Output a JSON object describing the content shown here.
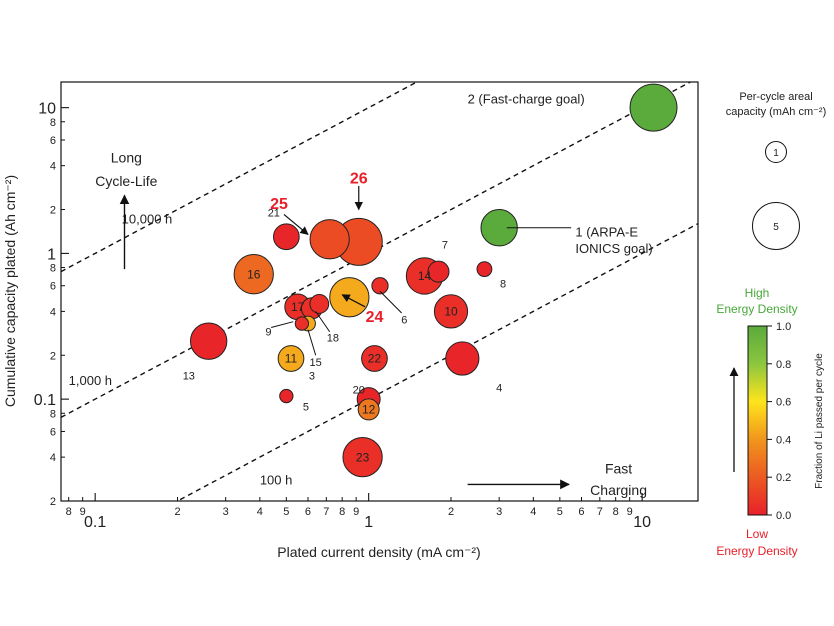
{
  "chart_data": {
    "type": "scatter",
    "xscale": "log",
    "yscale": "log",
    "xlim": [
      0.075,
      16
    ],
    "ylim": [
      0.02,
      15
    ],
    "xlabel": "Plated current density (mA cm⁻²)",
    "ylabel": "Cumulative capacity plated (Ah cm⁻²)",
    "x_major_ticks": [
      {
        "v": 0.1,
        "label": "0.1"
      },
      {
        "v": 1,
        "label": "1"
      },
      {
        "v": 10,
        "label": "10"
      }
    ],
    "x_minor_ticks": [
      {
        "v": 0.08,
        "label": "8"
      },
      {
        "v": 0.09,
        "label": "9"
      },
      {
        "v": 0.2,
        "label": "2"
      },
      {
        "v": 0.3,
        "label": "3"
      },
      {
        "v": 0.4,
        "label": "4"
      },
      {
        "v": 0.5,
        "label": "5"
      },
      {
        "v": 0.6,
        "label": "6"
      },
      {
        "v": 0.7,
        "label": "7"
      },
      {
        "v": 0.8,
        "label": "8"
      },
      {
        "v": 0.9,
        "label": "9"
      },
      {
        "v": 2,
        "label": "2"
      },
      {
        "v": 3,
        "label": "3"
      },
      {
        "v": 4,
        "label": "4"
      },
      {
        "v": 5,
        "label": "5"
      },
      {
        "v": 6,
        "label": "6"
      },
      {
        "v": 7,
        "label": "7"
      },
      {
        "v": 8,
        "label": "8"
      },
      {
        "v": 9,
        "label": "9"
      }
    ],
    "y_major_ticks": [
      {
        "v": 0.1,
        "label": "0.1"
      },
      {
        "v": 1,
        "label": "1"
      },
      {
        "v": 10,
        "label": "10"
      }
    ],
    "y_minor_ticks": [
      {
        "v": 0.02,
        "label": "2"
      },
      {
        "v": 0.04,
        "label": "4"
      },
      {
        "v": 0.06,
        "label": "6"
      },
      {
        "v": 0.08,
        "label": "8"
      },
      {
        "v": 0.2,
        "label": "2"
      },
      {
        "v": 0.4,
        "label": "4"
      },
      {
        "v": 0.6,
        "label": "6"
      },
      {
        "v": 0.8,
        "label": "8"
      },
      {
        "v": 2,
        "label": "2"
      },
      {
        "v": 4,
        "label": "4"
      },
      {
        "v": 6,
        "label": "6"
      },
      {
        "v": 8,
        "label": "8"
      }
    ],
    "constant_time_lines": [
      {
        "hours": 10000,
        "label": "10,000 h",
        "label_x": 0.125,
        "label_y": 1.6
      },
      {
        "hours": 1000,
        "label": "1,000 h",
        "label_x": 0.08,
        "label_y": 0.125
      },
      {
        "hours": 100,
        "label": "100 h",
        "label_x": 0.4,
        "label_y": 0.026
      }
    ],
    "points": [
      {
        "id": "1",
        "x": 3.0,
        "y": 1.5,
        "cap": 3.0,
        "frac": 1.0,
        "label": "1 (ARPA-E\nIONICS goal)",
        "label_x": 5.7,
        "label_y": 1.4,
        "label_color": "#222222",
        "label_size": 13,
        "label_bold": false,
        "label_anchor": "start"
      },
      {
        "id": "2",
        "x": 11.0,
        "y": 10.0,
        "cap": 5.0,
        "frac": 1.0,
        "label": "2 (Fast-charge goal)",
        "label_x": 2.3,
        "label_y": 11.5,
        "label_color": "#222222",
        "label_size": 13,
        "label_bold": false,
        "label_anchor": "start"
      },
      {
        "id": "3",
        "x": 0.6,
        "y": 0.33,
        "cap": 0.5,
        "frac": 0.45,
        "label": "3",
        "label_x": 0.62,
        "label_y": 0.145,
        "label_color": "#222222",
        "label_size": 11,
        "label_bold": false,
        "label_anchor": "middle"
      },
      {
        "id": "4",
        "x": 2.2,
        "y": 0.19,
        "cap": 2.5,
        "frac": 0.02,
        "label": "4",
        "label_x": 3.0,
        "label_y": 0.12,
        "label_color": "#222222",
        "label_size": 11,
        "label_bold": false,
        "label_anchor": "middle"
      },
      {
        "id": "5",
        "x": 0.5,
        "y": 0.105,
        "cap": 0.4,
        "frac": 0.02,
        "label": "5",
        "label_x": 0.59,
        "label_y": 0.089,
        "label_color": "#222222",
        "label_size": 11,
        "label_bold": false,
        "label_anchor": "middle"
      },
      {
        "id": "6",
        "x": 1.1,
        "y": 0.6,
        "cap": 0.6,
        "frac": 0.05,
        "label": "6",
        "label_x": 1.35,
        "label_y": 0.35,
        "label_color": "#222222",
        "label_size": 11,
        "label_bold": false,
        "label_anchor": "middle"
      },
      {
        "id": "7",
        "x": 1.8,
        "y": 0.75,
        "cap": 1.0,
        "frac": 0.02,
        "label": "7",
        "label_x": 1.9,
        "label_y": 1.15,
        "label_color": "#222222",
        "label_size": 11,
        "label_bold": false,
        "label_anchor": "middle"
      },
      {
        "id": "8",
        "x": 2.65,
        "y": 0.78,
        "cap": 0.5,
        "frac": 0.02,
        "label": "8",
        "label_x": 3.1,
        "label_y": 0.62,
        "label_color": "#222222",
        "label_size": 11,
        "label_bold": false,
        "label_anchor": "middle"
      },
      {
        "id": "9",
        "x": 0.57,
        "y": 0.33,
        "cap": 0.4,
        "frac": 0.05,
        "label": "9",
        "label_x": 0.43,
        "label_y": 0.29,
        "label_color": "#222222",
        "label_size": 11,
        "label_bold": false,
        "label_anchor": "middle"
      },
      {
        "id": "10",
        "x": 2.0,
        "y": 0.4,
        "cap": 2.5,
        "frac": 0.05,
        "label": "10",
        "label_x": 2.0,
        "label_y": 0.4,
        "label_color": "#222222",
        "label_size": 12,
        "label_bold": false,
        "label_anchor": "middle"
      },
      {
        "id": "11",
        "x": 0.52,
        "y": 0.19,
        "cap": 1.5,
        "frac": 0.45,
        "label": "11",
        "label_x": 0.52,
        "label_y": 0.19,
        "label_color": "#222222",
        "label_size": 12,
        "label_bold": false,
        "label_anchor": "middle"
      },
      {
        "id": "12",
        "x": 1.0,
        "y": 0.085,
        "cap": 1.0,
        "frac": 0.3,
        "label": "12",
        "label_x": 1.0,
        "label_y": 0.085,
        "label_color": "#222222",
        "label_size": 12,
        "label_bold": false,
        "label_anchor": "middle"
      },
      {
        "id": "13",
        "x": 0.26,
        "y": 0.25,
        "cap": 3.0,
        "frac": 0.02,
        "label": "13",
        "label_x": 0.22,
        "label_y": 0.145,
        "label_color": "#222222",
        "label_size": 11,
        "label_bold": false,
        "label_anchor": "middle"
      },
      {
        "id": "14",
        "x": 1.6,
        "y": 0.7,
        "cap": 3.0,
        "frac": 0.05,
        "label": "14",
        "label_x": 1.6,
        "label_y": 0.7,
        "label_color": "#222222",
        "label_size": 12,
        "label_bold": false,
        "label_anchor": "middle"
      },
      {
        "id": "15",
        "x": 0.62,
        "y": 0.42,
        "cap": 1.0,
        "frac": 0.05,
        "label": "15",
        "label_x": 0.64,
        "label_y": 0.18,
        "label_color": "#222222",
        "label_size": 11,
        "label_bold": false,
        "label_anchor": "middle"
      },
      {
        "id": "16",
        "x": 0.38,
        "y": 0.72,
        "cap": 3.5,
        "frac": 0.25,
        "label": "16",
        "label_x": 0.38,
        "label_y": 0.72,
        "label_color": "#222222",
        "label_size": 12,
        "label_bold": false,
        "label_anchor": "middle"
      },
      {
        "id": "17",
        "x": 0.55,
        "y": 0.43,
        "cap": 1.5,
        "frac": 0.05,
        "label": "17",
        "label_x": 0.55,
        "label_y": 0.43,
        "label_color": "#222222",
        "label_size": 12,
        "label_bold": false,
        "label_anchor": "middle"
      },
      {
        "id": "18",
        "x": 0.66,
        "y": 0.45,
        "cap": 0.8,
        "frac": 0.05,
        "label": "18",
        "label_x": 0.74,
        "label_y": 0.265,
        "label_color": "#222222",
        "label_size": 11,
        "label_bold": false,
        "label_anchor": "middle"
      },
      {
        "id": "20",
        "x": 1.0,
        "y": 0.1,
        "cap": 1.2,
        "frac": 0.02,
        "label": "20",
        "label_x": 0.92,
        "label_y": 0.116,
        "label_color": "#222222",
        "label_size": 11,
        "label_bold": false,
        "label_anchor": "middle"
      },
      {
        "id": "21",
        "x": 0.5,
        "y": 1.3,
        "cap": 1.5,
        "frac": 0.02,
        "label": "21",
        "label_x": 0.45,
        "label_y": 1.9,
        "label_color": "#222222",
        "label_size": 11,
        "label_bold": false,
        "label_anchor": "middle"
      },
      {
        "id": "22",
        "x": 1.05,
        "y": 0.19,
        "cap": 1.5,
        "frac": 0.05,
        "label": "22",
        "label_x": 1.05,
        "label_y": 0.19,
        "label_color": "#222222",
        "label_size": 12,
        "label_bold": false,
        "label_anchor": "middle"
      },
      {
        "id": "23",
        "x": 0.95,
        "y": 0.04,
        "cap": 3.5,
        "frac": 0.05,
        "label": "23",
        "label_x": 0.95,
        "label_y": 0.04,
        "label_color": "#222222",
        "label_size": 12,
        "label_bold": false,
        "label_anchor": "middle"
      },
      {
        "id": "24",
        "x": 0.85,
        "y": 0.5,
        "cap": 3.5,
        "frac": 0.45,
        "label": "24",
        "label_x": 1.05,
        "label_y": 0.37,
        "label_color": "#e8202a",
        "label_size": 16,
        "label_bold": true,
        "label_anchor": "middle"
      },
      {
        "id": "25",
        "x": 0.72,
        "y": 1.25,
        "cap": 3.5,
        "frac": 0.15,
        "label": "25",
        "label_x": 0.47,
        "label_y": 2.2,
        "label_color": "#e8202a",
        "label_size": 16,
        "label_bold": true,
        "label_anchor": "middle"
      },
      {
        "id": "26",
        "x": 0.92,
        "y": 1.2,
        "cap": 5.0,
        "frac": 0.15,
        "label": "26",
        "label_x": 0.92,
        "label_y": 3.3,
        "label_color": "#e8202a",
        "label_size": 16,
        "label_bold": true,
        "label_anchor": "middle"
      }
    ],
    "callout_arrows": [
      {
        "from_x": 0.49,
        "from_y": 1.85,
        "to_x": 0.6,
        "to_y": 1.35
      },
      {
        "from_x": 0.92,
        "from_y": 2.9,
        "to_x": 0.92,
        "to_y": 2.0
      },
      {
        "from_x": 0.97,
        "from_y": 0.43,
        "to_x": 0.8,
        "to_y": 0.52
      }
    ],
    "leader_lines": [
      {
        "from_x": 5.5,
        "from_y": 1.5,
        "to_x": 3.2,
        "to_y": 1.5
      },
      {
        "from_x": 1.32,
        "from_y": 0.39,
        "to_x": 1.1,
        "to_y": 0.55
      },
      {
        "from_x": 0.72,
        "from_y": 0.29,
        "to_x": 0.64,
        "to_y": 0.4
      },
      {
        "from_x": 0.64,
        "from_y": 0.2,
        "to_x": 0.6,
        "to_y": 0.3
      },
      {
        "from_x": 0.44,
        "from_y": 0.31,
        "to_x": 0.53,
        "to_y": 0.34
      }
    ],
    "annotations": [
      {
        "text": "Long",
        "x": 0.13,
        "y": 4.2,
        "size": 14,
        "anchor": "middle"
      },
      {
        "text": "Cycle-Life",
        "x": 0.13,
        "y": 2.9,
        "size": 14,
        "anchor": "middle"
      },
      {
        "text": "Fast",
        "x": 8.2,
        "y": 0.031,
        "size": 14,
        "anchor": "middle"
      },
      {
        "text": "Charging",
        "x": 8.2,
        "y": 0.022,
        "size": 14,
        "anchor": "middle"
      }
    ],
    "direction_arrows": [
      {
        "name": "long-cycle-life-arrow",
        "from_x": 0.128,
        "from_y": 0.78,
        "to_x": 0.128,
        "to_y": 2.5
      },
      {
        "name": "fast-charging-arrow",
        "from_x": 2.3,
        "from_y": 0.026,
        "to_x": 5.4,
        "to_y": 0.026
      }
    ],
    "size_legend": {
      "title_line1": "Per-cycle areal",
      "title_line2": "capacity (mAh cm⁻²)",
      "entries": [
        {
          "label": "1",
          "cap": 1
        },
        {
          "label": "5",
          "cap": 5
        }
      ]
    },
    "colorbar": {
      "title": "Fraction of Li passed per cycle",
      "top_label_line1": "High",
      "top_label_line2": "Energy Density",
      "bottom_label_line1": "Low",
      "bottom_label_line2": "Energy Density",
      "top_label_color": "#48a83a",
      "bottom_label_color": "#e8202a",
      "ticks": [
        {
          "v": 0.0,
          "label": "0.0"
        },
        {
          "v": 0.2,
          "label": "0.2"
        },
        {
          "v": 0.4,
          "label": "0.4"
        },
        {
          "v": 0.6,
          "label": "0.6"
        },
        {
          "v": 0.8,
          "label": "0.8"
        },
        {
          "v": 1.0,
          "label": "1.0"
        }
      ],
      "stops": [
        "#e8202a",
        "#ec5a22",
        "#f0961c",
        "#ffe41c",
        "#8cc63f",
        "#5aaa3c"
      ]
    }
  }
}
